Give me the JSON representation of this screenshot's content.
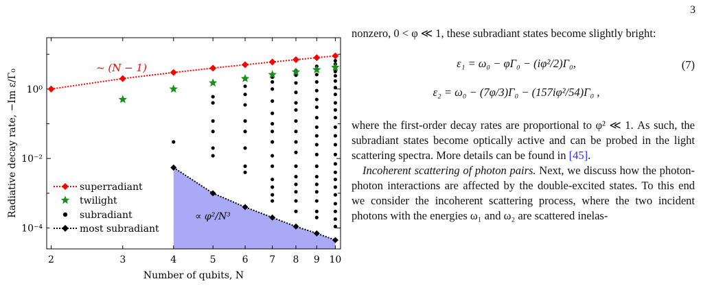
{
  "page_number": "3",
  "figure": {
    "ylabel": "Radiative decay rate, −Im ε/Γ₀",
    "xlabel": "Number of qubits, N",
    "annotation_superradiant": "~ (N − 1)",
    "annotation_fill": "∝ φ²/N³",
    "legend": [
      "superradiant",
      "twilight",
      "subradiant",
      "most subradiant"
    ],
    "colors": {
      "superradiant": "#ff0000",
      "twilight": "#1a8f1a",
      "subradiant": "#000000",
      "fill": "#a9a9f5"
    }
  },
  "chart_data": {
    "type": "scatter",
    "xlabel": "Number of qubits, N",
    "ylabel": "Radiative decay rate, −Im ε/Γ₀",
    "x_scale": "log",
    "y_scale": "log",
    "xlim": [
      1.95,
      10.3
    ],
    "ylim": [
      2.5e-05,
      30
    ],
    "x_ticks": [
      2,
      3,
      4,
      5,
      6,
      7,
      8,
      9,
      10
    ],
    "y_ticks": [
      0.0001,
      0.01,
      1
    ],
    "y_tick_labels": [
      "10⁻⁴",
      "10⁻²",
      "10⁰"
    ],
    "legend_position": "bottom-left",
    "series": [
      {
        "name": "superradiant",
        "x": [
          2,
          3,
          4,
          5,
          6,
          7,
          8,
          9,
          10
        ],
        "y": [
          1,
          2,
          3,
          4,
          5,
          6,
          7,
          8,
          9
        ]
      },
      {
        "name": "twilight",
        "x": [
          3,
          4,
          5,
          6,
          7,
          8,
          9,
          10
        ],
        "y": [
          0.5,
          1,
          1.5,
          2,
          2.6,
          3.1,
          3.6,
          4.2
        ]
      },
      {
        "name": "subradiant",
        "points": [
          [
            4,
            0.03
          ],
          [
            5,
            0.6
          ],
          [
            5,
            0.4
          ],
          [
            5,
            0.12
          ],
          [
            5,
            0.06
          ],
          [
            5,
            0.02
          ],
          [
            5,
            0.012
          ],
          [
            6,
            1.2
          ],
          [
            6,
            0.7
          ],
          [
            6,
            0.35
          ],
          [
            6,
            0.12
          ],
          [
            6,
            0.06
          ],
          [
            6,
            0.02
          ],
          [
            6,
            0.006
          ],
          [
            6,
            0.004
          ],
          [
            7,
            2.2
          ],
          [
            7,
            1.6
          ],
          [
            7,
            1.0
          ],
          [
            7,
            0.45
          ],
          [
            7,
            0.2
          ],
          [
            7,
            0.1
          ],
          [
            7,
            0.06
          ],
          [
            7,
            0.03
          ],
          [
            7,
            0.012
          ],
          [
            7,
            0.006
          ],
          [
            7,
            0.0025
          ],
          [
            7,
            0.0015
          ],
          [
            7,
            0.0009
          ],
          [
            7,
            0.0006
          ],
          [
            8,
            3.4
          ],
          [
            8,
            2.5
          ],
          [
            8,
            1.5
          ],
          [
            8,
            0.8
          ],
          [
            8,
            0.4
          ],
          [
            8,
            0.25
          ],
          [
            8,
            0.12
          ],
          [
            8,
            0.06
          ],
          [
            8,
            0.03
          ],
          [
            8,
            0.015
          ],
          [
            8,
            0.006
          ],
          [
            8,
            0.003
          ],
          [
            8,
            0.0018
          ],
          [
            8,
            0.0011
          ],
          [
            8,
            0.0006
          ],
          [
            8,
            0.0003
          ],
          [
            9,
            4.5
          ],
          [
            9,
            3.6
          ],
          [
            9,
            2.6
          ],
          [
            9,
            1.6
          ],
          [
            9,
            0.9
          ],
          [
            9,
            0.5
          ],
          [
            9,
            0.3
          ],
          [
            9,
            0.15
          ],
          [
            9,
            0.08
          ],
          [
            9,
            0.045
          ],
          [
            9,
            0.025
          ],
          [
            9,
            0.013
          ],
          [
            9,
            0.006
          ],
          [
            9,
            0.003
          ],
          [
            9,
            0.0018
          ],
          [
            9,
            0.0011
          ],
          [
            9,
            0.0006
          ],
          [
            9,
            0.0003
          ],
          [
            9,
            0.0002
          ],
          [
            10,
            6.5
          ],
          [
            10,
            5.2
          ],
          [
            10,
            4.1
          ],
          [
            10,
            3.2
          ],
          [
            10,
            2.4
          ],
          [
            10,
            1.7
          ],
          [
            10,
            1.1
          ],
          [
            10,
            0.7
          ],
          [
            10,
            0.4
          ],
          [
            10,
            0.25
          ],
          [
            10,
            0.15
          ],
          [
            10,
            0.08
          ],
          [
            10,
            0.045
          ],
          [
            10,
            0.025
          ],
          [
            10,
            0.013
          ],
          [
            10,
            0.007
          ],
          [
            10,
            0.004
          ],
          [
            10,
            0.0025
          ],
          [
            10,
            0.0015
          ],
          [
            10,
            0.0009
          ],
          [
            10,
            0.0005
          ],
          [
            10,
            0.0003
          ],
          [
            10,
            0.00018
          ],
          [
            10,
            0.00011
          ]
        ]
      },
      {
        "name": "most subradiant",
        "x": [
          4,
          5,
          6,
          7,
          8,
          9,
          10
        ],
        "y": [
          0.0055,
          0.001,
          0.0004,
          0.0002,
          0.00011,
          7e-05,
          4.5e-05
        ]
      }
    ]
  },
  "text": {
    "para1": "nonzero, 0 < φ ≪ 1, these subradiant states become slightly bright:",
    "eq1": "ε₁ = ω₀ − φΓ₀ − (iφ²/2)Γ₀,",
    "eq2": "ε₂ = ω₀ − (7φ/3)Γ₀ − (157iφ²/54)Γ₀ ,",
    "eq_number": "(7)",
    "para2": "where the first-order decay rates are proportional to φ² ≪ 1. As such, the subradiant states become optically active and can be probed in the light scattering spectra. More details can be found in",
    "ref45": "[45]",
    "para2_end": ".",
    "para3_title": "Incoherent scattering of photon pairs.",
    "para3": " Next, we discuss how the photon-photon interactions are affected by the double-excited states. To this end we consider the incoherent scattering process, where the two incident photons with the energies ω₁ and ω₂ are scattered inelas-"
  }
}
